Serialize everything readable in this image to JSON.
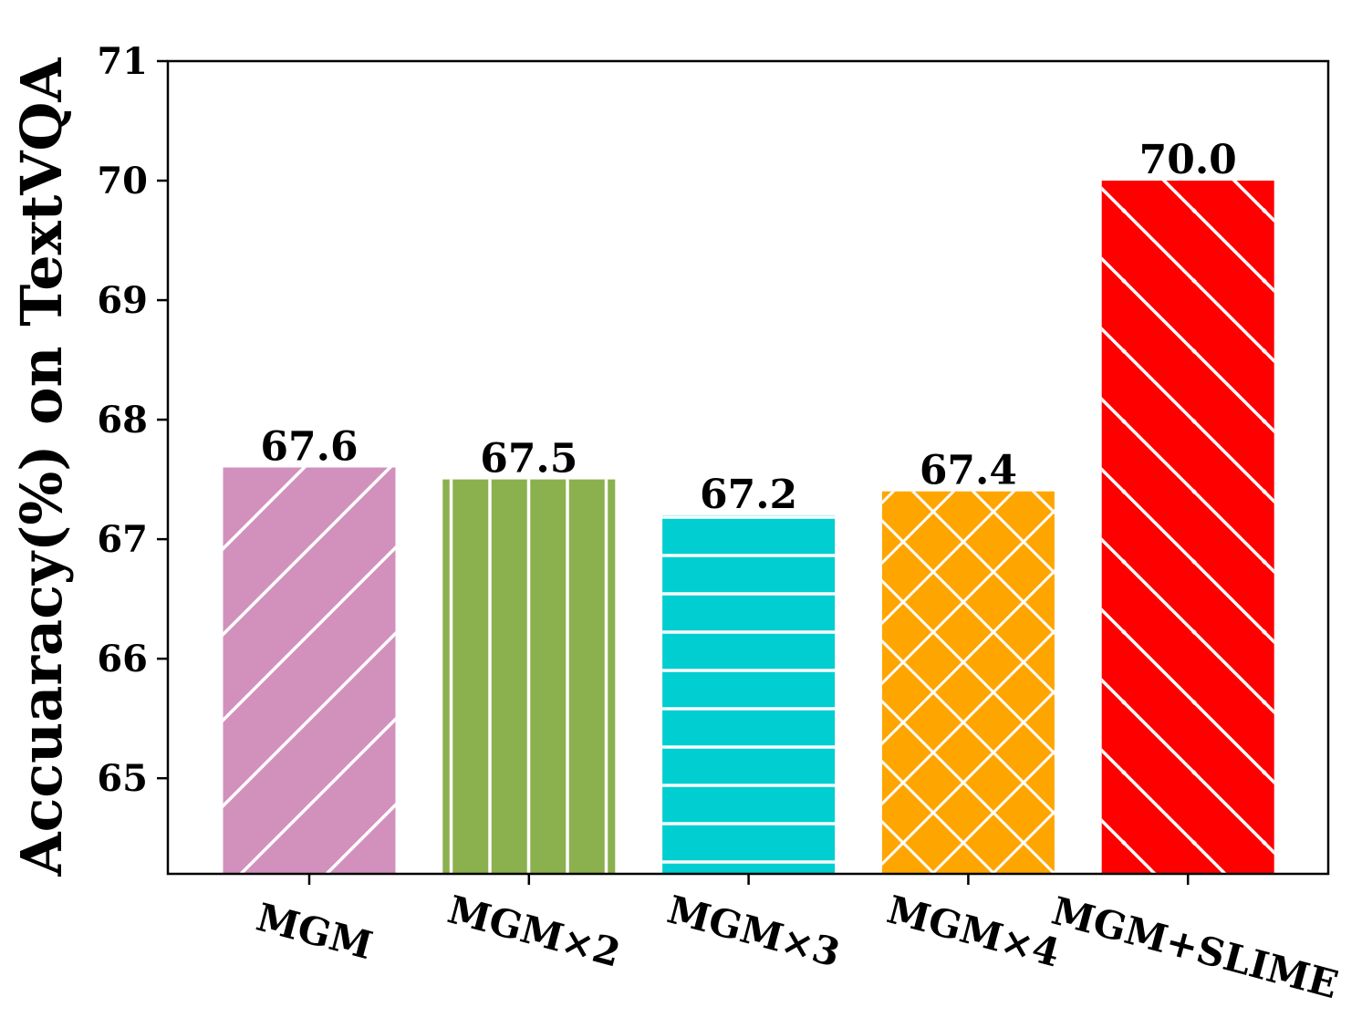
{
  "chart_data": {
    "type": "bar",
    "categories": [
      "MGM",
      "MGM×2",
      "MGM×3",
      "MGM×4",
      "MGM+SLIME"
    ],
    "values": [
      67.6,
      67.5,
      67.2,
      67.4,
      70.0
    ],
    "value_labels": [
      "67.6",
      "67.5",
      "67.2",
      "67.4",
      "70.0"
    ],
    "colors": [
      "#D291BC",
      "#8BB04E",
      "#00CED1",
      "#FFA500",
      "#FF0000"
    ],
    "hatches": [
      "forward-diagonal",
      "vertical",
      "horizontal",
      "cross-diagonal",
      "back-diagonal"
    ],
    "title": "",
    "xlabel": "",
    "ylabel": "Accuaracy(%) on TextVQA",
    "ylim": [
      64.2,
      71
    ],
    "yticks": [
      65,
      66,
      67,
      68,
      69,
      70,
      71
    ],
    "ytick_labels": [
      "65",
      "66",
      "67",
      "68",
      "69",
      "70",
      "71"
    ],
    "grid": false,
    "legend": "none"
  }
}
